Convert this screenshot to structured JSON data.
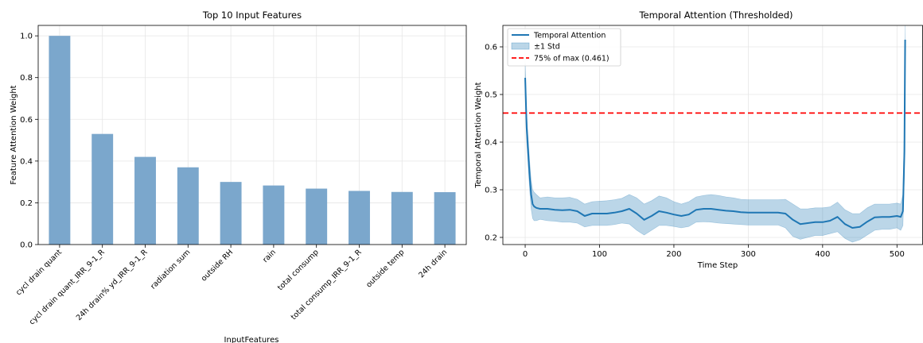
{
  "chart_data": [
    {
      "type": "bar",
      "title": "Top 10 Input Features",
      "xlabel": "InputFeatures",
      "ylabel": "Feature Attention Weight",
      "categories": [
        "cycl drain quant",
        "cycl drain quant_IRR_9-1_R",
        "24h drain% yd_IRR_9-1_R",
        "radiation sum",
        "outside RH",
        "rain",
        "total consump",
        "total consump_IRR_9-1_R",
        "outside temp",
        "24h drain"
      ],
      "values": [
        1.0,
        0.53,
        0.42,
        0.37,
        0.3,
        0.283,
        0.268,
        0.257,
        0.252,
        0.251
      ],
      "ylim": [
        0,
        1.05
      ],
      "yticks": [
        0.0,
        0.2,
        0.4,
        0.6,
        0.8,
        1.0
      ],
      "ytick_labels": [
        "0.0",
        "0.2",
        "0.4",
        "0.6",
        "0.8",
        "1.0"
      ],
      "grid": true,
      "bar_color": "#7ba7cc"
    },
    {
      "type": "line",
      "title": "Temporal Attention (Thresholded)",
      "xlabel": "Time Step",
      "ylabel": "Temporal Attention Weight",
      "xlim": [
        -30,
        535
      ],
      "ylim": [
        0.185,
        0.645
      ],
      "xticks": [
        0,
        100,
        200,
        300,
        400,
        500
      ],
      "xtick_labels": [
        "0",
        "100",
        "200",
        "300",
        "400",
        "500"
      ],
      "yticks": [
        0.2,
        0.3,
        0.4,
        0.5,
        0.6
      ],
      "ytick_labels": [
        "0.2",
        "0.3",
        "0.4",
        "0.5",
        "0.6"
      ],
      "grid": true,
      "legend": "top-left",
      "series": [
        {
          "name": "Temporal Attention",
          "color": "#1f77b4",
          "x": [
            0,
            2,
            4,
            6,
            8,
            10,
            12,
            15,
            20,
            30,
            40,
            50,
            60,
            70,
            80,
            90,
            100,
            110,
            120,
            130,
            140,
            150,
            160,
            170,
            180,
            190,
            200,
            210,
            220,
            230,
            240,
            250,
            260,
            270,
            280,
            290,
            300,
            310,
            320,
            330,
            340,
            350,
            360,
            370,
            380,
            390,
            400,
            410,
            420,
            430,
            440,
            450,
            460,
            470,
            480,
            490,
            500,
            505,
            508,
            510,
            511
          ],
          "y": [
            0.535,
            0.43,
            0.38,
            0.33,
            0.29,
            0.27,
            0.265,
            0.262,
            0.26,
            0.26,
            0.258,
            0.257,
            0.258,
            0.255,
            0.245,
            0.25,
            0.25,
            0.25,
            0.252,
            0.255,
            0.26,
            0.25,
            0.237,
            0.245,
            0.255,
            0.252,
            0.248,
            0.245,
            0.248,
            0.258,
            0.26,
            0.26,
            0.258,
            0.256,
            0.255,
            0.253,
            0.252,
            0.252,
            0.252,
            0.252,
            0.252,
            0.25,
            0.237,
            0.228,
            0.23,
            0.232,
            0.232,
            0.235,
            0.243,
            0.228,
            0.22,
            0.222,
            0.233,
            0.242,
            0.243,
            0.243,
            0.245,
            0.243,
            0.255,
            0.38,
            0.615
          ]
        },
        {
          "name": "±1 Std",
          "color": "#1f77b4",
          "x": [
            0,
            2,
            4,
            6,
            8,
            10,
            12,
            15,
            20,
            30,
            40,
            50,
            60,
            70,
            80,
            90,
            100,
            110,
            120,
            130,
            140,
            150,
            160,
            170,
            180,
            190,
            200,
            210,
            220,
            230,
            240,
            250,
            260,
            270,
            280,
            290,
            300,
            310,
            320,
            330,
            340,
            350,
            360,
            370,
            380,
            390,
            400,
            410,
            420,
            430,
            440,
            450,
            460,
            470,
            480,
            490,
            500,
            505,
            508,
            510,
            511
          ],
          "lower": [
            0.505,
            0.4,
            0.35,
            0.3,
            0.26,
            0.24,
            0.235,
            0.235,
            0.238,
            0.235,
            0.234,
            0.232,
            0.232,
            0.23,
            0.222,
            0.225,
            0.225,
            0.225,
            0.227,
            0.23,
            0.228,
            0.215,
            0.205,
            0.215,
            0.225,
            0.225,
            0.223,
            0.22,
            0.223,
            0.232,
            0.233,
            0.232,
            0.23,
            0.229,
            0.228,
            0.227,
            0.226,
            0.226,
            0.226,
            0.226,
            0.226,
            0.22,
            0.202,
            0.196,
            0.2,
            0.204,
            0.204,
            0.208,
            0.212,
            0.198,
            0.19,
            0.195,
            0.205,
            0.215,
            0.217,
            0.217,
            0.22,
            0.215,
            0.225,
            0.33,
            0.59
          ],
          "upper": [
            0.565,
            0.46,
            0.41,
            0.36,
            0.32,
            0.3,
            0.295,
            0.29,
            0.283,
            0.285,
            0.283,
            0.283,
            0.284,
            0.28,
            0.27,
            0.275,
            0.276,
            0.277,
            0.279,
            0.282,
            0.29,
            0.283,
            0.27,
            0.277,
            0.287,
            0.283,
            0.275,
            0.27,
            0.275,
            0.285,
            0.288,
            0.29,
            0.288,
            0.285,
            0.283,
            0.28,
            0.279,
            0.279,
            0.279,
            0.279,
            0.279,
            0.28,
            0.27,
            0.26,
            0.26,
            0.262,
            0.262,
            0.264,
            0.274,
            0.258,
            0.25,
            0.25,
            0.262,
            0.27,
            0.27,
            0.27,
            0.272,
            0.27,
            0.29,
            0.43,
            0.645
          ]
        },
        {
          "name": "75% of max (0.461)",
          "color": "#ff0000",
          "type": "hline",
          "y": 0.461
        }
      ]
    }
  ]
}
